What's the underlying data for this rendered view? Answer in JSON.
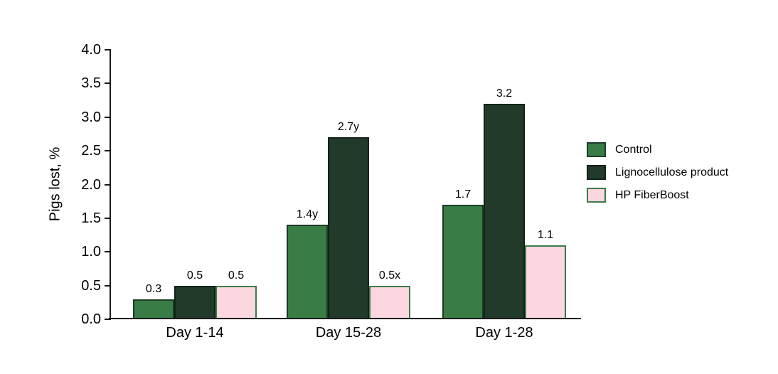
{
  "chart_data": {
    "type": "bar",
    "title": "",
    "xlabel": "",
    "ylabel": "Pigs lost, %",
    "ylim": [
      0.0,
      4.0
    ],
    "ytick_step": 0.5,
    "ytick_labels": [
      "0.0",
      "0.5",
      "1.0",
      "1.5",
      "2.0",
      "2.5",
      "3.0",
      "3.5",
      "4.0"
    ],
    "categories": [
      "Day 1-14",
      "Day 15-28",
      "Day 1-28"
    ],
    "series": [
      {
        "name": "Control",
        "fill_color": "#3A7C46",
        "border_color": "#1C3C26",
        "values": [
          0.3,
          1.4,
          1.7
        ],
        "value_labels": [
          "0.3",
          "1.4y",
          "1.7"
        ]
      },
      {
        "name": "Lignocellulose product",
        "fill_color": "#223A2A",
        "border_color": "#0F2316",
        "values": [
          0.5,
          2.7,
          3.2
        ],
        "value_labels": [
          "0.5",
          "2.7y",
          "3.2"
        ]
      },
      {
        "name": "HP FiberBoost",
        "fill_color": "#FCD7E0",
        "border_color": "#3A7C46",
        "values": [
          0.5,
          0.5,
          1.1
        ],
        "value_labels": [
          "0.5",
          "0.5x",
          "1.1"
        ]
      }
    ],
    "legend_position": "right",
    "grid": false,
    "background_color": "#FFFFFF",
    "axis_color": "#1A1A1A",
    "text_color": "#000000"
  }
}
